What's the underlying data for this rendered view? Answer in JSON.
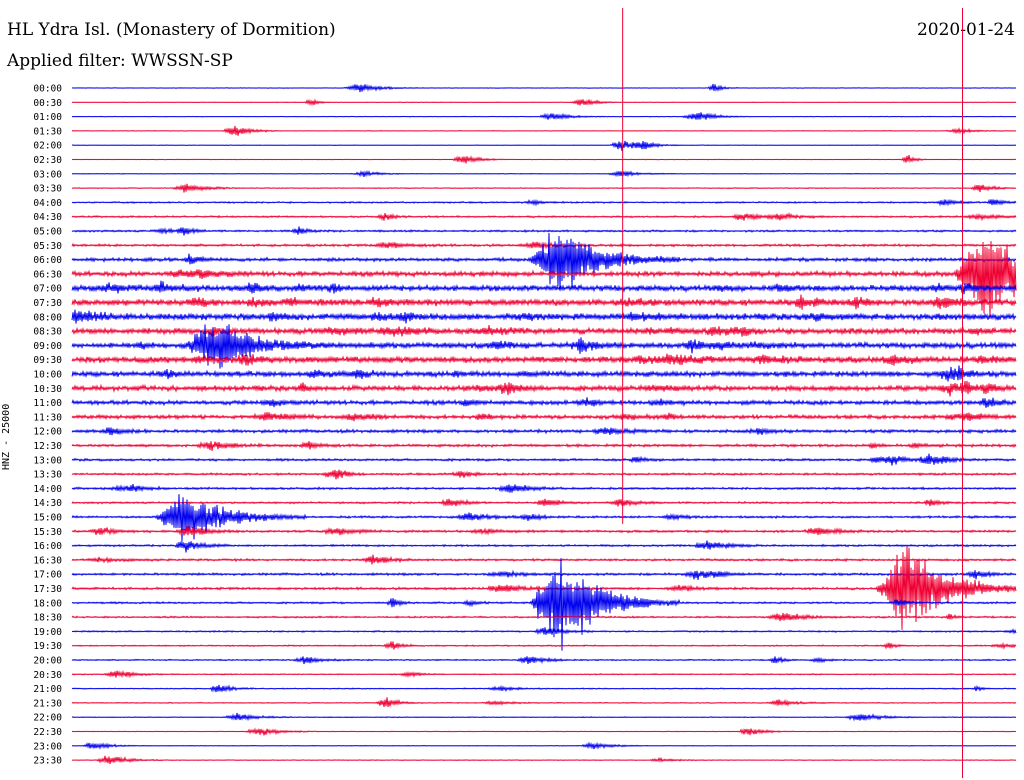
{
  "header": {
    "station": "HL Ydra Isl. (Monastery of Dormition)",
    "filter": "Applied filter: WWSSN-SP",
    "date": "2020-01-24"
  },
  "colors": {
    "trace_a": "#0000ee",
    "trace_b": "#ee0033",
    "background": "#ffffff"
  },
  "chart_data": {
    "type": "line",
    "title": "HL Ydra Isl. (Monastery of Dormition)",
    "subtitle": "Applied filter: WWSSN-SP",
    "ylabel": "HNZ - 25000",
    "xlabel": "",
    "grid": false,
    "legend": "none",
    "row_labels": [
      "00:00",
      "00:30",
      "01:00",
      "01:30",
      "02:00",
      "02:30",
      "03:00",
      "03:30",
      "04:00",
      "04:30",
      "05:00",
      "05:30",
      "06:00",
      "06:30",
      "07:00",
      "07:30",
      "08:00",
      "08:30",
      "09:00",
      "09:30",
      "10:00",
      "10:30",
      "11:00",
      "11:30",
      "12:00",
      "12:30",
      "13:00",
      "13:30",
      "14:00",
      "14:30",
      "15:00",
      "15:30",
      "16:00",
      "16:30",
      "17:00",
      "17:30",
      "18:00",
      "18:30",
      "19:00",
      "19:30",
      "20:00",
      "20:30",
      "21:00",
      "21:30",
      "22:00",
      "22:30",
      "23:00",
      "23:30"
    ],
    "row_colors": [
      "trace_a",
      "trace_b"
    ],
    "row_noise": [
      0.05,
      0.05,
      0.05,
      0.05,
      0.05,
      0.05,
      0.06,
      0.08,
      0.14,
      0.16,
      0.18,
      0.22,
      0.32,
      0.45,
      0.55,
      0.6,
      0.62,
      0.55,
      0.52,
      0.6,
      0.5,
      0.48,
      0.4,
      0.35,
      0.3,
      0.25,
      0.22,
      0.2,
      0.2,
      0.18,
      0.2,
      0.22,
      0.18,
      0.2,
      0.22,
      0.22,
      0.18,
      0.16,
      0.14,
      0.12,
      0.12,
      0.1,
      0.1,
      0.08,
      0.08,
      0.06,
      0.06,
      0.06
    ],
    "events": [
      {
        "row": 12,
        "minute": 15.5,
        "amplitude": 4.5
      },
      {
        "row": 18,
        "minute": 4.5,
        "amplitude": 3.0
      },
      {
        "row": 13,
        "minute": 29.0,
        "amplitude": 6.0
      },
      {
        "row": 30,
        "minute": 3.6,
        "amplitude": 3.5
      },
      {
        "row": 36,
        "minute": 15.5,
        "amplitude": 6.5
      },
      {
        "row": 35,
        "minute": 26.5,
        "amplitude": 5.5
      }
    ],
    "spikes": [
      {
        "row": 13,
        "minute": 17.5
      },
      {
        "row": 35,
        "minute": 28.3
      }
    ]
  }
}
